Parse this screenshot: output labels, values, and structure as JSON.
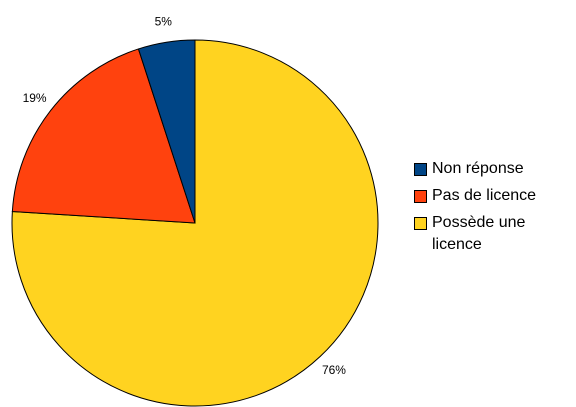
{
  "chart_data": {
    "type": "pie",
    "categories": [
      "Non réponse",
      "Pas de licence",
      "Possède une licence"
    ],
    "values": [
      5,
      19,
      76
    ],
    "value_labels": [
      "5%",
      "19%",
      "76%"
    ],
    "colors": [
      "#004586",
      "#ff420e",
      "#ffd320"
    ]
  }
}
